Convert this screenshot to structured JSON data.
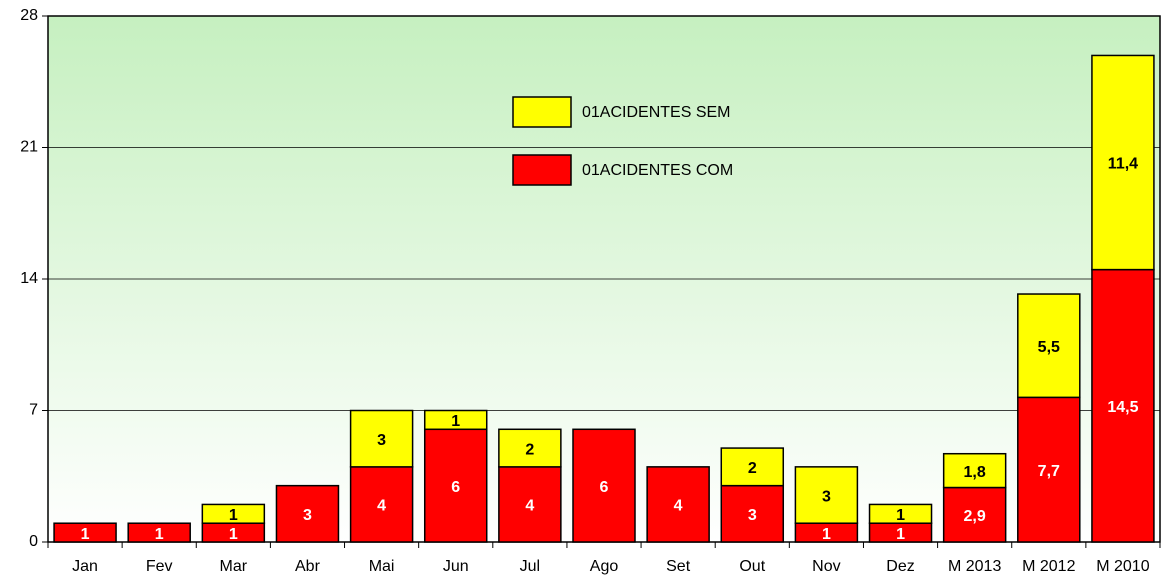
{
  "chart_data": {
    "type": "stacked-bar",
    "categories": [
      "Jan",
      "Fev",
      "Mar",
      "Abr",
      "Mai",
      "Jun",
      "Jul",
      "Ago",
      "Set",
      "Out",
      "Nov",
      "Dez",
      "M 2013",
      "M 2012",
      "M 2010"
    ],
    "series": [
      {
        "name": "01ACIDENTES COM",
        "color": "#ff0000",
        "values": [
          1,
          1,
          1,
          3,
          4,
          6,
          4,
          6,
          4,
          3,
          1,
          1,
          2.9,
          7.7,
          14.5
        ],
        "value_labels": [
          "1",
          "1",
          "1",
          "3",
          "4",
          "6",
          "4",
          "6",
          "4",
          "3",
          "1",
          "1",
          "2,9",
          "7,7",
          "14,5"
        ]
      },
      {
        "name": "01ACIDENTES SEM",
        "color": "#ffff00",
        "values": [
          null,
          null,
          1,
          null,
          3,
          1,
          2,
          null,
          null,
          2,
          3,
          1,
          1.8,
          5.5,
          11.4
        ],
        "value_labels": [
          null,
          null,
          "1",
          null,
          "3",
          "1",
          "2",
          null,
          null,
          "2",
          "3",
          "1",
          "1,8",
          "5,5",
          "11,4"
        ]
      }
    ],
    "ylim": [
      0,
      28
    ],
    "yticks": [
      0,
      7,
      14,
      21,
      28
    ],
    "grid": true
  }
}
